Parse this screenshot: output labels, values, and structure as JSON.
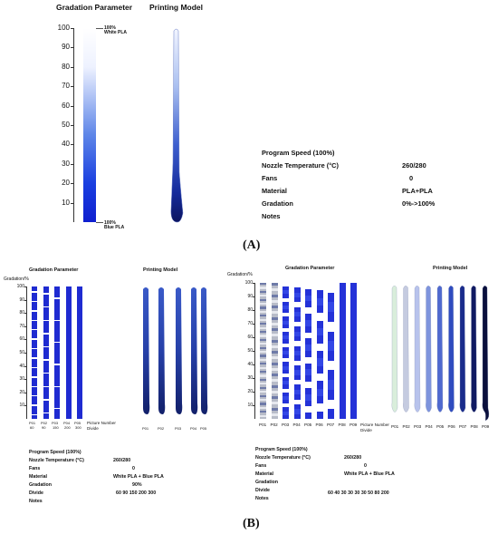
{
  "panel_a": {
    "gradation_title": "Gradation Parameter",
    "printing_title": "Printing Model",
    "axis_ticks": [
      "100",
      "90",
      "80",
      "70",
      "60",
      "50",
      "40",
      "30",
      "20",
      "10"
    ],
    "top_label_pct": "100%",
    "top_label_mat": "White PLA",
    "bottom_label_pct": "100%",
    "bottom_label_mat": "Blue PLA",
    "params": [
      {
        "name": "Program Speed (100%)",
        "value": ""
      },
      {
        "name": "Nozzle Temperature  (°C)",
        "value": "260/280"
      },
      {
        "name": "Fans",
        "value": "0"
      },
      {
        "name": "Material",
        "value": "PLA+PLA"
      },
      {
        "name": "Gradation",
        "value": "0%->100%"
      },
      {
        "name": "Notes",
        "value": ""
      }
    ],
    "figure_label": "(A)"
  },
  "panel_b_left": {
    "gradation_title": "Gradation Parameter",
    "printing_title": "Printing Model",
    "y_label": "Gradation/%",
    "axis_ticks": [
      "100",
      "90",
      "80",
      "70",
      "60",
      "50",
      "40",
      "30",
      "20",
      "10"
    ],
    "bar_labels": [
      "P01\n60",
      "P02\n90",
      "P03\n150",
      "P04\n200",
      "P05\n300"
    ],
    "axis_caption": "Picture Number\nDivide",
    "model_labels": [
      "P01",
      "P02",
      "P03",
      "P04",
      "P05"
    ],
    "params": [
      {
        "name": "Program Speed (100%)",
        "value": ""
      },
      {
        "name": "Nozzle Temperature (°C)",
        "value": "260/280"
      },
      {
        "name": "Fans",
        "value": "0"
      },
      {
        "name": "Material",
        "value": "White PLA + Blue PLA"
      },
      {
        "name": "Gradation",
        "value": "90%"
      },
      {
        "name": "Divide",
        "value": "60 90 150 200 300"
      },
      {
        "name": "Notes",
        "value": ""
      }
    ]
  },
  "panel_b_right": {
    "gradation_title": "Gradation Parameter",
    "printing_title": "Printing Model",
    "y_label": "Gradation/%",
    "axis_ticks": [
      "100",
      "90",
      "80",
      "70",
      "60",
      "50",
      "40",
      "30",
      "20",
      "10"
    ],
    "bar_labels": [
      "P01",
      "P02",
      "P03",
      "P04",
      "P05",
      "P06",
      "P07",
      "P08",
      "P09"
    ],
    "axis_caption": "Picture Number\nDivide",
    "model_labels": [
      "P01",
      "P02",
      "P03",
      "P04",
      "P05",
      "P06",
      "P07",
      "P08",
      "P09"
    ],
    "params": [
      {
        "name": "Program Speed (100%)",
        "value": ""
      },
      {
        "name": "Nozzle Temperature (°C)",
        "value": "260/280"
      },
      {
        "name": "Fans",
        "value": "0"
      },
      {
        "name": "Material",
        "value": "White PLA + Blue PLA"
      },
      {
        "name": "Gradation",
        "value": ""
      },
      {
        "name": "Divide",
        "value": "60 40 30 30 30 30 50 80 200"
      },
      {
        "name": "Notes",
        "value": ""
      }
    ],
    "figure_label": "(B)"
  }
}
